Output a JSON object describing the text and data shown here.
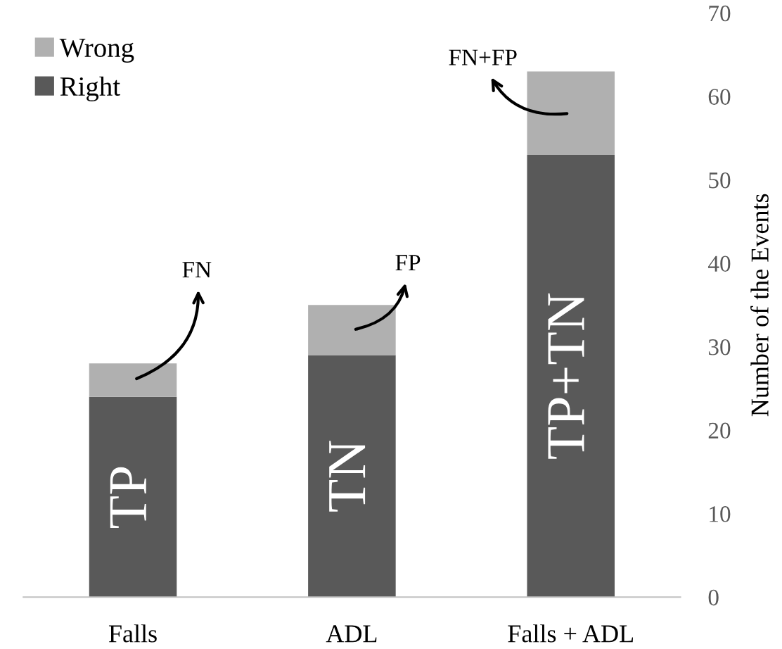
{
  "chart_data": {
    "type": "bar",
    "stacked": true,
    "categories": [
      "Falls",
      "ADL",
      "Falls + ADL"
    ],
    "series": [
      {
        "name": "Right",
        "color": "#595959",
        "values": [
          24,
          29,
          53
        ]
      },
      {
        "name": "Wrong",
        "color": "#b0b0b0",
        "values": [
          4,
          6,
          10
        ]
      }
    ],
    "ylabel": "Number of the Events",
    "ylim": [
      0,
      70
    ],
    "yticks": [
      0,
      10,
      20,
      30,
      40,
      50,
      60,
      70
    ],
    "grid": false,
    "legend": "top left",
    "annotations": [
      "TP",
      "TN",
      "TP+TN",
      "FN",
      "FP",
      "FN+FP"
    ]
  }
}
